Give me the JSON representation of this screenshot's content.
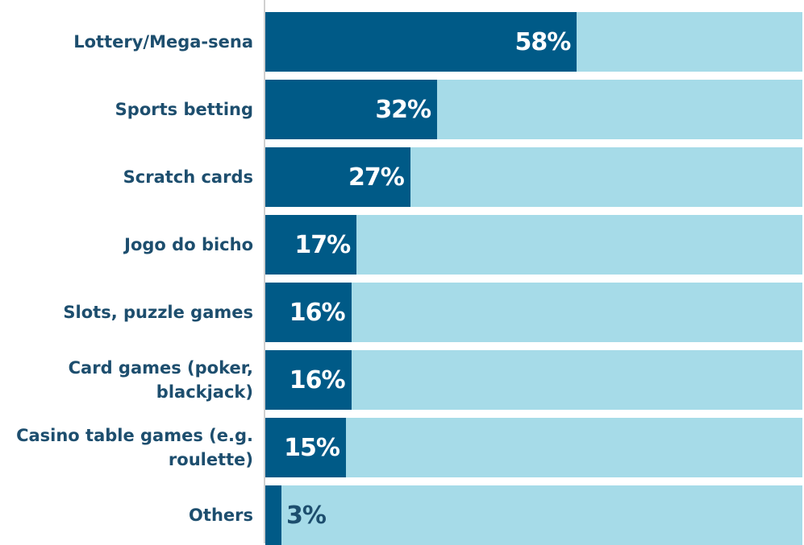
{
  "chart_data": {
    "type": "bar",
    "orientation": "horizontal",
    "categories": [
      "Lottery/Mega-sena",
      "Sports betting",
      "Scratch cards",
      "Jogo do bicho",
      "Slots, puzzle games",
      "Card games (poker, blackjack)",
      "Casino table games (e.g. roulette)",
      "Others"
    ],
    "values": [
      58,
      32,
      27,
      17,
      16,
      16,
      15,
      3
    ],
    "value_labels": [
      "58%",
      "32%",
      "27%",
      "17%",
      "16%",
      "16%",
      "15%",
      "3%"
    ],
    "color": "#005a87",
    "background_color": "#a6dbe8",
    "xlim": [
      0,
      100
    ]
  }
}
